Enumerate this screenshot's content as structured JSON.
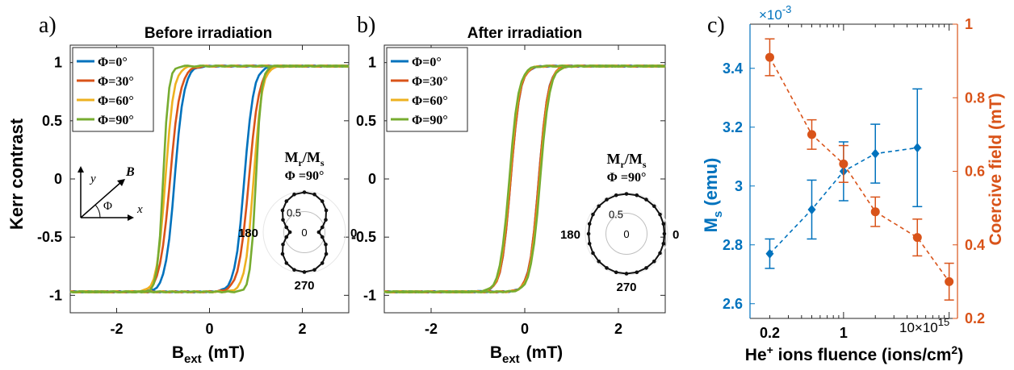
{
  "chart_data": [
    {
      "panel_label": "a)",
      "type": "line",
      "title": "Before irradiation",
      "xlabel": "B",
      "xlabel_sub": "ext",
      "xlabel_unit": "(mT)",
      "ylabel": "Kerr contrast",
      "xlim": [
        -3,
        3
      ],
      "ylim": [
        -1.15,
        1.15
      ],
      "xticks": [
        -2,
        0,
        2
      ],
      "xtick_labels": [
        "-2",
        "0",
        "2"
      ],
      "yticks": [
        -1,
        -0.5,
        0,
        0.5,
        1
      ],
      "ytick_labels": [
        "-1",
        "-0.5",
        "0",
        "0.5",
        "1"
      ],
      "legend_position": "top-left",
      "series": [
        {
          "name": "Φ=0°",
          "color": "#0072BD",
          "hc": 0.75,
          "width": 0.2
        },
        {
          "name": "Φ=30°",
          "color": "#D95319",
          "hc": 0.85,
          "width": 0.22
        },
        {
          "name": "Φ=60°",
          "color": "#EDB120",
          "hc": 0.95,
          "width": 0.18
        },
        {
          "name": "Φ=90°",
          "color": "#77AC30",
          "hc": 1.0,
          "width": 0.12
        }
      ],
      "inset": {
        "title": "M_r/M_s",
        "title_main": "M",
        "title_sub1": "r",
        "title_sub2": "s",
        "phi_label": "Φ =90°",
        "ring_label": "0.5",
        "center_label": "0",
        "angle_labels": [
          "180",
          "0",
          "270"
        ],
        "shape": "figure-eight",
        "points": [
          {
            "angle": 0,
            "r": 0.35
          },
          {
            "angle": 15,
            "r": 0.45
          },
          {
            "angle": 30,
            "r": 0.6
          },
          {
            "angle": 45,
            "r": 0.75
          },
          {
            "angle": 60,
            "r": 0.87
          },
          {
            "angle": 75,
            "r": 0.95
          },
          {
            "angle": 90,
            "r": 0.97
          },
          {
            "angle": 105,
            "r": 0.95
          },
          {
            "angle": 120,
            "r": 0.87
          },
          {
            "angle": 135,
            "r": 0.75
          },
          {
            "angle": 150,
            "r": 0.6
          },
          {
            "angle": 165,
            "r": 0.45
          },
          {
            "angle": 180,
            "r": 0.35
          },
          {
            "angle": 195,
            "r": 0.45
          },
          {
            "angle": 210,
            "r": 0.6
          },
          {
            "angle": 225,
            "r": 0.75
          },
          {
            "angle": 240,
            "r": 0.87
          },
          {
            "angle": 255,
            "r": 0.95
          },
          {
            "angle": 270,
            "r": 0.97
          },
          {
            "angle": 285,
            "r": 0.95
          },
          {
            "angle": 300,
            "r": 0.87
          },
          {
            "angle": 315,
            "r": 0.75
          },
          {
            "angle": 330,
            "r": 0.6
          },
          {
            "angle": 345,
            "r": 0.45
          }
        ]
      },
      "axes_diagram": {
        "y": "y",
        "x": "x",
        "b": "B",
        "phi": "Φ"
      }
    },
    {
      "panel_label": "b)",
      "type": "line",
      "title": "After irradiation",
      "xlabel": "B",
      "xlabel_sub": "ext",
      "xlabel_unit": "(mT)",
      "ylabel": "",
      "xlim": [
        -3,
        3
      ],
      "ylim": [
        -1.15,
        1.15
      ],
      "xticks": [
        -2,
        0,
        2
      ],
      "xtick_labels": [
        "-2",
        "0",
        "2"
      ],
      "yticks": [
        -1,
        -0.5,
        0,
        0.5,
        1
      ],
      "ytick_labels": [
        "-1",
        "-0.5",
        "0",
        "0.5",
        "1"
      ],
      "legend_position": "top-left",
      "series": [
        {
          "name": "Φ=0°",
          "color": "#0072BD",
          "hc": 0.3,
          "width": 0.2
        },
        {
          "name": "Φ=30°",
          "color": "#D95319",
          "hc": 0.3,
          "width": 0.2
        },
        {
          "name": "Φ=60°",
          "color": "#EDB120",
          "hc": 0.32,
          "width": 0.2
        },
        {
          "name": "Φ=90°",
          "color": "#77AC30",
          "hc": 0.33,
          "width": 0.2
        }
      ],
      "inset": {
        "title": "M_r/M_s",
        "title_main": "M",
        "title_sub1": "r",
        "title_sub2": "s",
        "phi_label": "Φ =90°",
        "ring_label": "0.5",
        "center_label": "0",
        "angle_labels": [
          "180",
          "0",
          "270"
        ],
        "shape": "near-circle",
        "points": [
          {
            "angle": 0,
            "r": 0.92
          },
          {
            "angle": 15,
            "r": 0.93
          },
          {
            "angle": 30,
            "r": 0.94
          },
          {
            "angle": 45,
            "r": 0.95
          },
          {
            "angle": 60,
            "r": 0.96
          },
          {
            "angle": 75,
            "r": 0.97
          },
          {
            "angle": 90,
            "r": 0.97
          },
          {
            "angle": 105,
            "r": 0.97
          },
          {
            "angle": 120,
            "r": 0.96
          },
          {
            "angle": 135,
            "r": 0.95
          },
          {
            "angle": 150,
            "r": 0.94
          },
          {
            "angle": 165,
            "r": 0.93
          },
          {
            "angle": 180,
            "r": 0.92
          },
          {
            "angle": 195,
            "r": 0.93
          },
          {
            "angle": 210,
            "r": 0.94
          },
          {
            "angle": 225,
            "r": 0.95
          },
          {
            "angle": 240,
            "r": 0.96
          },
          {
            "angle": 255,
            "r": 0.97
          },
          {
            "angle": 270,
            "r": 0.97
          },
          {
            "angle": 285,
            "r": 0.97
          },
          {
            "angle": 300,
            "r": 0.96
          },
          {
            "angle": 315,
            "r": 0.95
          },
          {
            "angle": 330,
            "r": 0.94
          },
          {
            "angle": 345,
            "r": 0.93
          }
        ]
      }
    },
    {
      "panel_label": "c)",
      "type": "line",
      "title": "",
      "xlabel": "He",
      "xlabel_sup": "+",
      "xlabel_rest": " ions fluence (ions/cm",
      "xlabel_sup2": "2",
      "xlabel_end": ")",
      "xscale": "log",
      "xlim": [
        0.13,
        12
      ],
      "xticks": [
        0.2,
        1
      ],
      "xtick_labels": [
        "0.2",
        "1"
      ],
      "x_multiplier": "10×10",
      "x_multiplier_exp": "15",
      "left_axis": {
        "label": "M",
        "label_sub": "s",
        "label_unit": " (emu)",
        "color": "#0072BD",
        "ylim": [
          2.55,
          3.55
        ],
        "yticks": [
          2.6,
          2.8,
          3.0,
          3.2,
          3.4
        ],
        "ytick_labels": [
          "2.6",
          "2.8",
          "3",
          "3.2",
          "3.4"
        ],
        "multiplier": "×10",
        "multiplier_exp": "-3"
      },
      "right_axis": {
        "label": "Coercive field (mT)",
        "color": "#D95319",
        "ylim": [
          0.2,
          1.0
        ],
        "yticks": [
          0.2,
          0.4,
          0.6,
          0.8,
          1.0
        ],
        "ytick_labels": [
          "0.2",
          "0.4",
          "0.6",
          "0.8",
          "1"
        ]
      },
      "series": [
        {
          "name": "Ms",
          "axis": "left",
          "marker": "diamond",
          "color": "#0072BD",
          "x": [
            0.2,
            0.5,
            1,
            2,
            5
          ],
          "y": [
            2.77,
            2.92,
            3.05,
            3.11,
            3.13
          ],
          "err": [
            0.05,
            0.1,
            0.1,
            0.1,
            0.2
          ]
        },
        {
          "name": "Coercive field",
          "axis": "right",
          "marker": "circle",
          "color": "#D95319",
          "x": [
            0.2,
            0.5,
            1,
            2,
            5,
            10
          ],
          "y": [
            0.91,
            0.7,
            0.62,
            0.49,
            0.42,
            0.3
          ],
          "err": [
            0.05,
            0.04,
            0.05,
            0.04,
            0.05,
            0.05
          ]
        }
      ]
    }
  ]
}
